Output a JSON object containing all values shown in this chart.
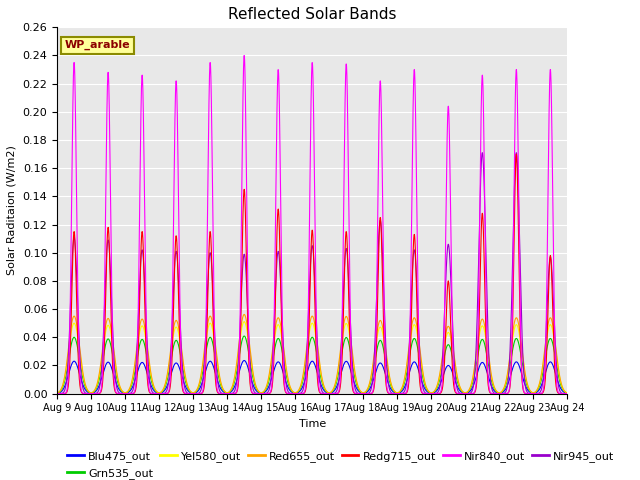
{
  "title": "Reflected Solar Bands",
  "xlabel": "Time",
  "ylabel": "Solar Raditaion (W/m2)",
  "ylim": [
    0,
    0.26
  ],
  "yticks": [
    0.0,
    0.02,
    0.04,
    0.06,
    0.08,
    0.1,
    0.12,
    0.14,
    0.16,
    0.18,
    0.2,
    0.22,
    0.24,
    0.26
  ],
  "xtick_labels": [
    "Aug 9",
    "Aug 10",
    "Aug 11",
    "Aug 12",
    "Aug 13",
    "Aug 14",
    "Aug 15",
    "Aug 16",
    "Aug 17",
    "Aug 18",
    "Aug 19",
    "Aug 20",
    "Aug 21",
    "Aug 22",
    "Aug 23",
    "Aug 24"
  ],
  "annotation_text": "WP_arable",
  "annotation_color": "#8B0000",
  "annotation_bg": "#FFFF99",
  "annotation_border": "#8B8B00",
  "series": [
    {
      "name": "Blu475_out",
      "color": "#0000FF"
    },
    {
      "name": "Grn535_out",
      "color": "#00CC00"
    },
    {
      "name": "Yel580_out",
      "color": "#FFFF00"
    },
    {
      "name": "Red655_out",
      "color": "#FFA500"
    },
    {
      "name": "Redg715_out",
      "color": "#FF0000"
    },
    {
      "name": "Nir840_out",
      "color": "#FF00FF"
    },
    {
      "name": "Nir945_out",
      "color": "#9900CC"
    }
  ],
  "n_days": 15,
  "day_peaks_nir840": [
    0.235,
    0.228,
    0.226,
    0.222,
    0.235,
    0.24,
    0.23,
    0.235,
    0.234,
    0.222,
    0.23,
    0.204,
    0.226,
    0.23,
    0.23
  ],
  "day_peaks_nir945": [
    0.111,
    0.109,
    0.102,
    0.101,
    0.1,
    0.099,
    0.101,
    0.105,
    0.103,
    0.123,
    0.102,
    0.106,
    0.171,
    0.171,
    0.097
  ],
  "day_peaks_redg715": [
    0.115,
    0.118,
    0.115,
    0.112,
    0.115,
    0.145,
    0.131,
    0.116,
    0.115,
    0.125,
    0.113,
    0.08,
    0.128,
    0.17,
    0.098
  ],
  "sigma_narrow": 0.07,
  "sigma_wide": 0.16,
  "sigma_medium": 0.1,
  "background_color": "#E8E8E8",
  "grid_color": "#FFFFFF",
  "figsize": [
    6.4,
    4.8
  ],
  "dpi": 100
}
